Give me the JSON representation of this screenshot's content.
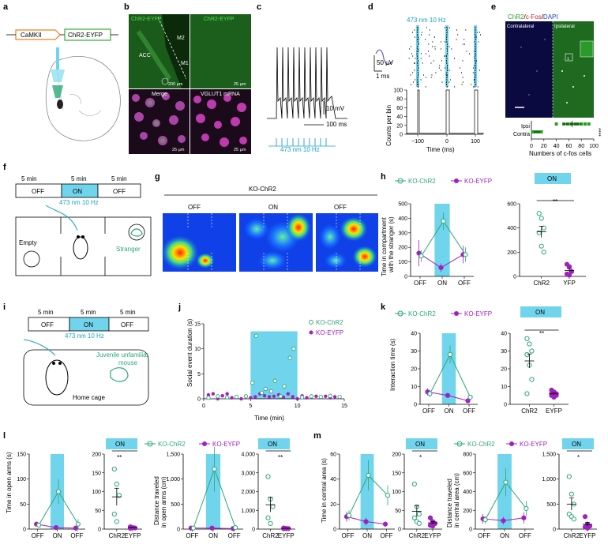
{
  "colors": {
    "blue": "#70d4ec",
    "green": "#2aa876",
    "purple": "#a020c0",
    "cyan": "#1aa0c8"
  },
  "panels": [
    "a",
    "b",
    "c",
    "d",
    "e",
    "f",
    "g",
    "h",
    "i",
    "j",
    "k",
    "l",
    "m"
  ],
  "a": {
    "promoter": "CaMKII",
    "gene": "ChR2-EYFP"
  },
  "b": {
    "tl_label": "ChR2-EYFP",
    "acc": "ACC",
    "m2": "M2",
    "m1": "M1",
    "scale1": "200 µm",
    "tr_label": "ChR2-EYFP",
    "scale2": "25 µm",
    "bl_label": "Merge",
    "scale3": "25 µm",
    "br_label": "VGLUT1 mRNA",
    "scale4": "25 µm"
  },
  "c": {
    "scale_v": "10 mV",
    "scale_t": "100 ms",
    "stim": "473 nm 10 Hz"
  },
  "d": {
    "stim": "473 nm 10 Hz",
    "scale_v": "50 µV",
    "scale_t": "1 ms",
    "ylabel": "Counts per bin",
    "xlabel": "Time (ms)",
    "yticks": [
      "0",
      "20",
      "40",
      "60",
      "80",
      "100"
    ],
    "xticks": [
      "−100",
      "0",
      "100"
    ]
  },
  "e": {
    "title_chr2": "ChR2",
    "title_sep1": "/",
    "title_cfos": "c-Fos",
    "title_sep2": "/",
    "title_dapi": "DAPI",
    "contra": "Contralateral",
    "ipsi": "Ipsilateral",
    "box": "1",
    "ipsi_lbl": "Ipsi",
    "contra_lbl": "Contra",
    "stars": "****",
    "xlabel": "Numbers of c-fos cells",
    "xticks": [
      "0",
      "20",
      "40",
      "60",
      "80",
      "100"
    ]
  },
  "f": {
    "dur": [
      "5 min",
      "5 min",
      "5 min"
    ],
    "phases": [
      "OFF",
      "ON",
      "OFF"
    ],
    "stim": "473 nm 10 Hz",
    "empty": "Empty",
    "stranger": "Stranger"
  },
  "g": {
    "title": "KO-ChR2",
    "phases": [
      "OFF",
      "ON",
      "OFF"
    ]
  },
  "h": {
    "legend": [
      "KO-ChR2",
      "KO-EYFP"
    ],
    "ylabel1": "Time in compartment",
    "ylabel2": "with the stranger (s)",
    "on": "ON",
    "stars": "**",
    "cats": [
      "ChR2",
      "YFP"
    ]
  },
  "i": {
    "dur": [
      "5 min",
      "5 min",
      "5 min"
    ],
    "phases": [
      "OFF",
      "ON",
      "OFF"
    ],
    "stim": "473 nm 10 Hz",
    "juv1": "Juvenile unfamiliar",
    "juv2": "mouse",
    "home": "Home cage"
  },
  "j": {
    "ylabel": "Social event duration (s)",
    "xlabel": "Time (min)",
    "legend": [
      "KO-ChR2",
      "KO-EYFP"
    ],
    "yticks": [
      "0",
      "5",
      "10",
      "15"
    ],
    "xticks": [
      "0",
      "5",
      "10",
      "15"
    ]
  },
  "k": {
    "legend": [
      "KO-ChR2",
      "KO-EYFP"
    ],
    "ylabel": "Interaction time (s)",
    "on": "ON",
    "stars": "**",
    "cats": [
      "ChR2",
      "EYFP"
    ],
    "yticks": [
      "0",
      "10",
      "20",
      "30",
      "40"
    ],
    "yticks2": [
      "0",
      "10",
      "20",
      "30",
      "40"
    ]
  },
  "l": {
    "ylabel1a": "Time in open arms (s)",
    "on": "ON",
    "stars1": "**",
    "legend": [
      "KO-ChR2",
      "KO-EYFP"
    ],
    "ylabel2a": "Distance traveled",
    "ylabel2b": "in open arms (cm)",
    "stars2": "**",
    "cats": [
      "ChR2",
      "EYFP"
    ],
    "yt1": [
      "0",
      "50",
      "100",
      "150"
    ],
    "yt2": [
      "0",
      "50",
      "100",
      "150",
      "200"
    ],
    "yt3": [
      "0",
      "500",
      "1,000",
      "1,500"
    ],
    "yt4": [
      "0",
      "1,000",
      "2,000",
      "3,000",
      "4,000"
    ]
  },
  "m": {
    "ylabel1": "Time in central area (s)",
    "on": "ON",
    "stars1": "*",
    "legend": [
      "KO-ChR2",
      "KO-EYFP"
    ],
    "ylabel2a": "Distance traveled",
    "ylabel2b": "in central area (cm)",
    "stars2": "*",
    "cats": [
      "ChR2",
      "EYFP"
    ],
    "yt1": [
      "0",
      "20",
      "40",
      "60"
    ],
    "yt2": [
      "0",
      "50",
      "100",
      "150",
      "200"
    ],
    "yt3": [
      "0",
      "200",
      "400",
      "600",
      "800"
    ],
    "yt4": [
      "0",
      "500",
      "1,000",
      "1,500"
    ]
  },
  "phase_ticks": [
    "OFF",
    "ON",
    "OFF"
  ]
}
